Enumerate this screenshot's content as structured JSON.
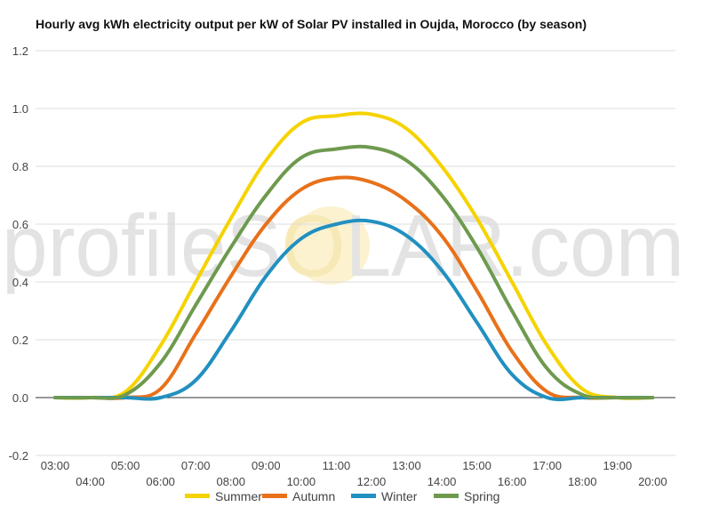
{
  "chart_data": {
    "type": "line",
    "title": "Hourly avg kWh electricity output per kW of Solar PV installed in Oujda, Morocco (by season)",
    "watermark": [
      "profile",
      "S",
      "O",
      "LAR.com"
    ],
    "xlabel": "",
    "ylabel": "",
    "ylim": [
      -0.2,
      1.2
    ],
    "yticks": [
      "-0.2",
      "0.0",
      "0.2",
      "0.4",
      "0.6",
      "0.8",
      "1.0",
      "1.2"
    ],
    "grid": true,
    "legend_position": "bottom",
    "x": [
      "03:00",
      "04:00",
      "05:00",
      "06:00",
      "07:00",
      "08:00",
      "09:00",
      "10:00",
      "11:00",
      "12:00",
      "13:00",
      "14:00",
      "15:00",
      "16:00",
      "17:00",
      "18:00",
      "19:00",
      "20:00"
    ],
    "series": [
      {
        "name": "Summer",
        "color": "#f5d300",
        "values": [
          0.0,
          0.0,
          0.02,
          0.18,
          0.4,
          0.62,
          0.82,
          0.95,
          0.975,
          0.98,
          0.93,
          0.8,
          0.62,
          0.4,
          0.18,
          0.03,
          0.0,
          0.0
        ]
      },
      {
        "name": "Autumn",
        "color": "#e8711a",
        "values": [
          0.0,
          0.0,
          0.0,
          0.03,
          0.22,
          0.42,
          0.6,
          0.72,
          0.76,
          0.745,
          0.68,
          0.56,
          0.37,
          0.16,
          0.02,
          0.0,
          0.0,
          0.0
        ]
      },
      {
        "name": "Winter",
        "color": "#2190c0",
        "values": [
          0.0,
          0.0,
          0.0,
          0.0,
          0.06,
          0.23,
          0.42,
          0.55,
          0.6,
          0.61,
          0.56,
          0.44,
          0.26,
          0.08,
          0.0,
          0.0,
          0.0,
          0.0
        ]
      },
      {
        "name": "Spring",
        "color": "#6e9a4e",
        "values": [
          0.0,
          0.0,
          0.01,
          0.12,
          0.32,
          0.52,
          0.7,
          0.83,
          0.86,
          0.865,
          0.82,
          0.7,
          0.52,
          0.3,
          0.1,
          0.01,
          0.0,
          0.0
        ]
      }
    ]
  }
}
